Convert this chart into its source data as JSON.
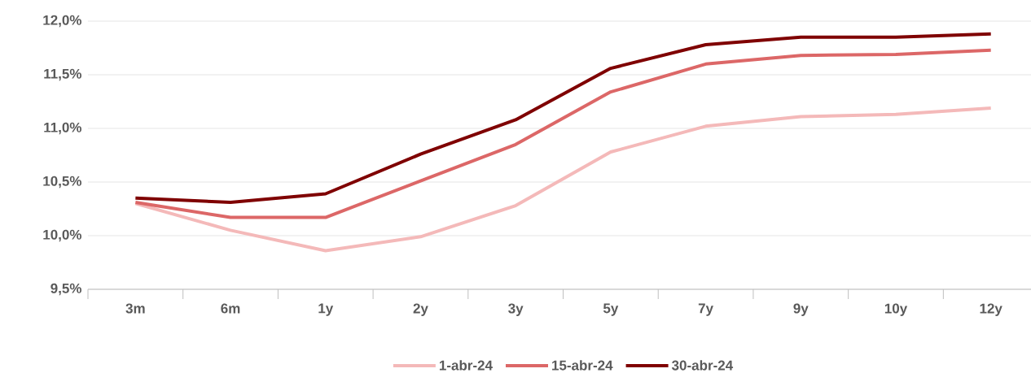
{
  "chart_data": {
    "type": "line",
    "categories": [
      "3m",
      "6m",
      "1y",
      "2y",
      "3y",
      "5y",
      "7y",
      "9y",
      "10y",
      "12y"
    ],
    "series": [
      {
        "name": "1-abr-24",
        "color": "#f4b9b9",
        "values": [
          10.3,
          10.05,
          9.86,
          9.99,
          10.28,
          10.78,
          11.02,
          11.11,
          11.13,
          11.19
        ]
      },
      {
        "name": "15-abr-24",
        "color": "#dc6767",
        "values": [
          10.31,
          10.17,
          10.17,
          10.51,
          10.85,
          11.34,
          11.6,
          11.68,
          11.69,
          11.73
        ]
      },
      {
        "name": "30-abr-24",
        "color": "#7f0000",
        "values": [
          10.35,
          10.31,
          10.39,
          10.76,
          11.08,
          11.56,
          11.78,
          11.85,
          11.85,
          11.88
        ]
      }
    ],
    "ylim": [
      9.5,
      12.0
    ],
    "yticks": [
      {
        "value": 9.5,
        "label": "9,5%"
      },
      {
        "value": 10.0,
        "label": "10,0%"
      },
      {
        "value": 10.5,
        "label": "10,5%"
      },
      {
        "value": 11.0,
        "label": "11,0%"
      },
      {
        "value": 11.5,
        "label": "11,5%"
      },
      {
        "value": 12.0,
        "label": "12,0%"
      }
    ],
    "grid": "y",
    "legend": "bottom",
    "marker": "none",
    "line_style": "solid"
  }
}
